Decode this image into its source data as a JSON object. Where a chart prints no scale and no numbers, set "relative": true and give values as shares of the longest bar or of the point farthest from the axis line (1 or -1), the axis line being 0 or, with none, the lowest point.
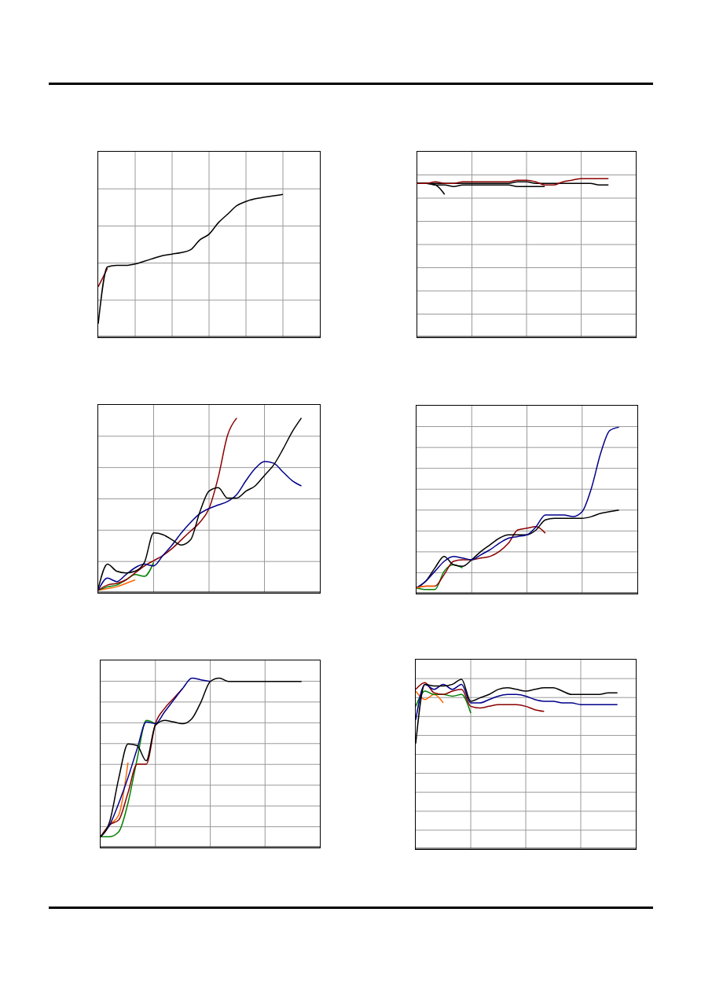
{
  "chart_data": [
    {
      "type": "line",
      "relative": true,
      "grid": true,
      "marker": "none",
      "categories": [
        null,
        null,
        null,
        null,
        null,
        null,
        null,
        null,
        null,
        null,
        null,
        null,
        null,
        null,
        null,
        null,
        null,
        null,
        null,
        null,
        null,
        null,
        null,
        null,
        null
      ],
      "series": [
        {
          "color": "#8b0000",
          "values": [
            0.35,
            0.48,
            null,
            null,
            null,
            null,
            null,
            null,
            null,
            null,
            null,
            null,
            null,
            null,
            null,
            null,
            null,
            null,
            null,
            null,
            null,
            null,
            null,
            null,
            null
          ]
        },
        {
          "color": "#000000",
          "values": [
            0.09,
            0.49,
            0.5,
            0.5,
            0.51,
            0.53,
            0.55,
            0.57,
            0.58,
            0.59,
            0.61,
            0.68,
            0.72,
            0.8,
            0.86,
            0.92,
            0.95,
            0.97,
            0.98,
            0.99,
            1,
            null,
            null,
            null,
            null
          ]
        }
      ]
    },
    {
      "type": "line",
      "relative": true,
      "grid": true,
      "marker": "none",
      "categories": [
        null,
        null,
        null,
        null,
        null,
        null,
        null,
        null,
        null,
        null,
        null,
        null,
        null,
        null,
        null,
        null,
        null,
        null,
        null,
        null,
        null,
        null,
        null,
        null,
        null
      ],
      "series": [
        {
          "color": "#000000",
          "values": [
            0.97,
            0.97,
            0.96,
            0.9,
            null,
            null,
            null,
            null,
            null,
            null,
            null,
            null,
            null,
            null,
            null,
            null,
            null,
            null,
            null,
            null,
            null,
            null,
            null,
            null,
            null
          ]
        },
        {
          "color": "#000000",
          "values": [
            0.97,
            0.97,
            0.96,
            0.96,
            0.95,
            0.96,
            0.96,
            0.96,
            0.96,
            0.96,
            0.96,
            0.95,
            0.95,
            0.95,
            0.95,
            null,
            null,
            null,
            null,
            null,
            null,
            null,
            null,
            null,
            null
          ]
        },
        {
          "color": "#000000",
          "values": [
            0.97,
            0.97,
            0.97,
            0.97,
            0.97,
            0.97,
            0.97,
            0.97,
            0.97,
            0.97,
            0.97,
            0.98,
            0.98,
            0.97,
            0.97,
            0.97,
            0.97,
            0.97,
            0.97,
            0.97,
            0.96,
            0.96,
            null,
            null,
            null
          ]
        },
        {
          "color": "#8b0000",
          "values": [
            0.97,
            0.97,
            0.98,
            0.97,
            0.97,
            0.98,
            0.98,
            0.98,
            0.98,
            0.98,
            0.98,
            0.99,
            0.99,
            0.98,
            0.96,
            0.96,
            0.98,
            0.99,
            1,
            1,
            1,
            1,
            null,
            null,
            null
          ]
        }
      ]
    },
    {
      "type": "line",
      "relative": true,
      "grid": true,
      "marker": "none",
      "categories": [
        null,
        null,
        null,
        null,
        null,
        null,
        null,
        null,
        null,
        null,
        null,
        null,
        null,
        null,
        null,
        null,
        null,
        null,
        null,
        null,
        null,
        null,
        null,
        null,
        null
      ],
      "series": [
        {
          "color": "#ff6600",
          "values": [
            0.01,
            0.02,
            0.03,
            0.05,
            0.07,
            null,
            null,
            null,
            null,
            null,
            null,
            null,
            null,
            null,
            null,
            null,
            null,
            null,
            null,
            null,
            null,
            null,
            null,
            null,
            null
          ]
        },
        {
          "color": "#008000",
          "values": [
            0.01,
            0.03,
            0.04,
            0.07,
            0.1,
            0.09,
            0.17,
            null,
            null,
            null,
            null,
            null,
            null,
            null,
            null,
            null,
            null,
            null,
            null,
            null,
            null,
            null,
            null,
            null,
            null
          ]
        },
        {
          "color": "#8b0000",
          "values": [
            0.01,
            0.04,
            0.05,
            0.07,
            0.11,
            0.15,
            0.18,
            0.21,
            0.25,
            0.3,
            0.35,
            0.4,
            0.48,
            0.66,
            0.9,
            1,
            null,
            null,
            null,
            null,
            null,
            null,
            null,
            null,
            null
          ]
        },
        {
          "color": "#00008b",
          "values": [
            0.01,
            0.08,
            0.06,
            0.1,
            0.14,
            0.16,
            0.15,
            0.21,
            0.27,
            0.34,
            0.4,
            0.45,
            0.48,
            0.5,
            0.52,
            0.56,
            0.64,
            0.71,
            0.75,
            0.74,
            0.69,
            0.64,
            0.61,
            null,
            null
          ]
        },
        {
          "color": "#000000",
          "values": [
            0.02,
            0.16,
            0.12,
            0.11,
            0.12,
            0.17,
            0.34,
            0.33,
            0.3,
            0.27,
            0.3,
            0.46,
            0.58,
            0.6,
            0.54,
            0.54,
            0.58,
            0.61,
            0.67,
            0.73,
            0.82,
            0.92,
            1,
            null,
            null
          ]
        }
      ]
    },
    {
      "type": "line",
      "relative": true,
      "grid": true,
      "marker": "none",
      "categories": [
        null,
        null,
        null,
        null,
        null,
        null,
        null,
        null,
        null,
        null,
        null,
        null,
        null,
        null,
        null,
        null,
        null,
        null,
        null,
        null,
        null,
        null,
        null,
        null,
        null
      ],
      "series": [
        {
          "color": "#008000",
          "values": [
            0.03,
            0.02,
            0.02,
            0.13,
            0.17,
            0.15,
            null,
            null,
            null,
            null,
            null,
            null,
            null,
            null,
            null,
            null,
            null,
            null,
            null,
            null,
            null,
            null,
            null,
            null,
            null
          ]
        },
        {
          "color": "#8b0000",
          "values": [
            0.03,
            0.04,
            0.04,
            0.11,
            0.19,
            0.2,
            0.2,
            0.21,
            0.22,
            0.25,
            0.3,
            0.38,
            0.39,
            0.4,
            0.36,
            null,
            null,
            null,
            null,
            null,
            null,
            null,
            null,
            null,
            null
          ]
        },
        {
          "color": "#000000",
          "values": [
            0.03,
            0.07,
            0.15,
            0.22,
            0.17,
            0.16,
            0.2,
            0.25,
            0.29,
            0.33,
            0.35,
            0.35,
            0.35,
            0.38,
            0.44,
            0.45,
            0.45,
            0.45,
            0.45,
            0.46,
            0.48,
            0.49,
            0.5,
            null,
            null
          ]
        },
        {
          "color": "#00008b",
          "values": [
            0.03,
            0.07,
            0.13,
            0.19,
            0.22,
            0.21,
            0.2,
            0.23,
            0.26,
            0.3,
            0.33,
            0.34,
            0.35,
            0.4,
            0.47,
            0.47,
            0.47,
            0.46,
            0.49,
            0.63,
            0.84,
            0.98,
            1,
            null,
            null
          ]
        },
        {
          "color": "#ff6600",
          "values": [
            0.03,
            0.04,
            0.04,
            null,
            null,
            null,
            null,
            null,
            null,
            null,
            null,
            null,
            null,
            null,
            null,
            null,
            null,
            null,
            null,
            null,
            null,
            null,
            null,
            null,
            null
          ]
        }
      ]
    },
    {
      "type": "line",
      "relative": true,
      "grid": true,
      "marker": "none",
      "categories": [
        null,
        null,
        null,
        null,
        null,
        null,
        null,
        null,
        null,
        null,
        null,
        null,
        null,
        null,
        null,
        null,
        null,
        null,
        null,
        null,
        null,
        null,
        null,
        null,
        null
      ],
      "series": [
        {
          "color": "#008000",
          "values": [
            0.06,
            0.06,
            0.09,
            0.26,
            0.52,
            0.75,
            0.73,
            null,
            null,
            null,
            null,
            null,
            null,
            null,
            null,
            null,
            null,
            null,
            null,
            null,
            null,
            null,
            null,
            null,
            null
          ]
        },
        {
          "color": "#ff6600",
          "values": [
            0.06,
            0.13,
            0.19,
            0.5,
            null,
            null,
            null,
            null,
            null,
            null,
            null,
            null,
            null,
            null,
            null,
            null,
            null,
            null,
            null,
            null,
            null,
            null,
            null,
            null,
            null
          ]
        },
        {
          "color": "#8b0000",
          "values": [
            0.06,
            0.13,
            0.16,
            0.32,
            0.49,
            0.49,
            0.73,
            0.82,
            0.88,
            0.94,
            null,
            null,
            null,
            null,
            null,
            null,
            null,
            null,
            null,
            null,
            null,
            null,
            null,
            null,
            null
          ]
        },
        {
          "color": "#00008b",
          "values": [
            0.06,
            0.13,
            0.26,
            0.41,
            0.58,
            0.74,
            0.73,
            0.8,
            0.87,
            0.94,
            1,
            0.99,
            0.98,
            null,
            null,
            null,
            null,
            null,
            null,
            null,
            null,
            null,
            null,
            null,
            null
          ]
        },
        {
          "color": "#000000",
          "values": [
            0.06,
            0.15,
            0.41,
            0.61,
            0.6,
            0.51,
            0.72,
            0.75,
            0.74,
            0.73,
            0.76,
            0.86,
            0.98,
            1,
            0.98,
            0.98,
            0.98,
            0.98,
            0.98,
            0.98,
            0.98,
            0.98,
            0.98,
            null,
            null
          ]
        }
      ]
    },
    {
      "type": "line",
      "relative": true,
      "grid": true,
      "marker": "none",
      "categories": [
        null,
        null,
        null,
        null,
        null,
        null,
        null,
        null,
        null,
        null,
        null,
        null,
        null,
        null,
        null,
        null,
        null,
        null,
        null,
        null,
        null,
        null,
        null,
        null,
        null
      ],
      "series": [
        {
          "color": "#ff6600",
          "values": [
            0.93,
            0.88,
            0.91,
            0.86,
            null,
            null,
            null,
            null,
            null,
            null,
            null,
            null,
            null,
            null,
            null,
            null,
            null,
            null,
            null,
            null,
            null,
            null,
            null,
            null,
            null
          ]
        },
        {
          "color": "#008000",
          "values": [
            0.84,
            0.93,
            0.91,
            0.91,
            0.9,
            0.91,
            0.8,
            null,
            null,
            null,
            null,
            null,
            null,
            null,
            null,
            null,
            null,
            null,
            null,
            null,
            null,
            null,
            null,
            null,
            null
          ]
        },
        {
          "color": "#8b0000",
          "values": [
            0.94,
            0.98,
            0.92,
            0.91,
            0.93,
            0.94,
            0.84,
            0.83,
            0.84,
            0.85,
            0.85,
            0.85,
            0.84,
            0.82,
            0.81,
            null,
            null,
            null,
            null,
            null,
            null,
            null,
            null,
            null,
            null
          ]
        },
        {
          "color": "#00008b",
          "values": [
            0.76,
            0.97,
            0.94,
            0.97,
            0.94,
            0.97,
            0.86,
            0.86,
            0.88,
            0.9,
            0.91,
            0.91,
            0.9,
            0.88,
            0.87,
            0.87,
            0.86,
            0.86,
            0.85,
            0.85,
            0.85,
            0.85,
            0.85,
            null,
            null
          ]
        },
        {
          "color": "#000000",
          "values": [
            0.62,
            0.97,
            0.96,
            0.96,
            0.97,
            1,
            0.87,
            0.89,
            0.91,
            0.94,
            0.95,
            0.94,
            0.93,
            0.94,
            0.95,
            0.95,
            0.93,
            0.91,
            0.91,
            0.91,
            0.91,
            0.92,
            0.92,
            null,
            null
          ]
        }
      ]
    }
  ]
}
